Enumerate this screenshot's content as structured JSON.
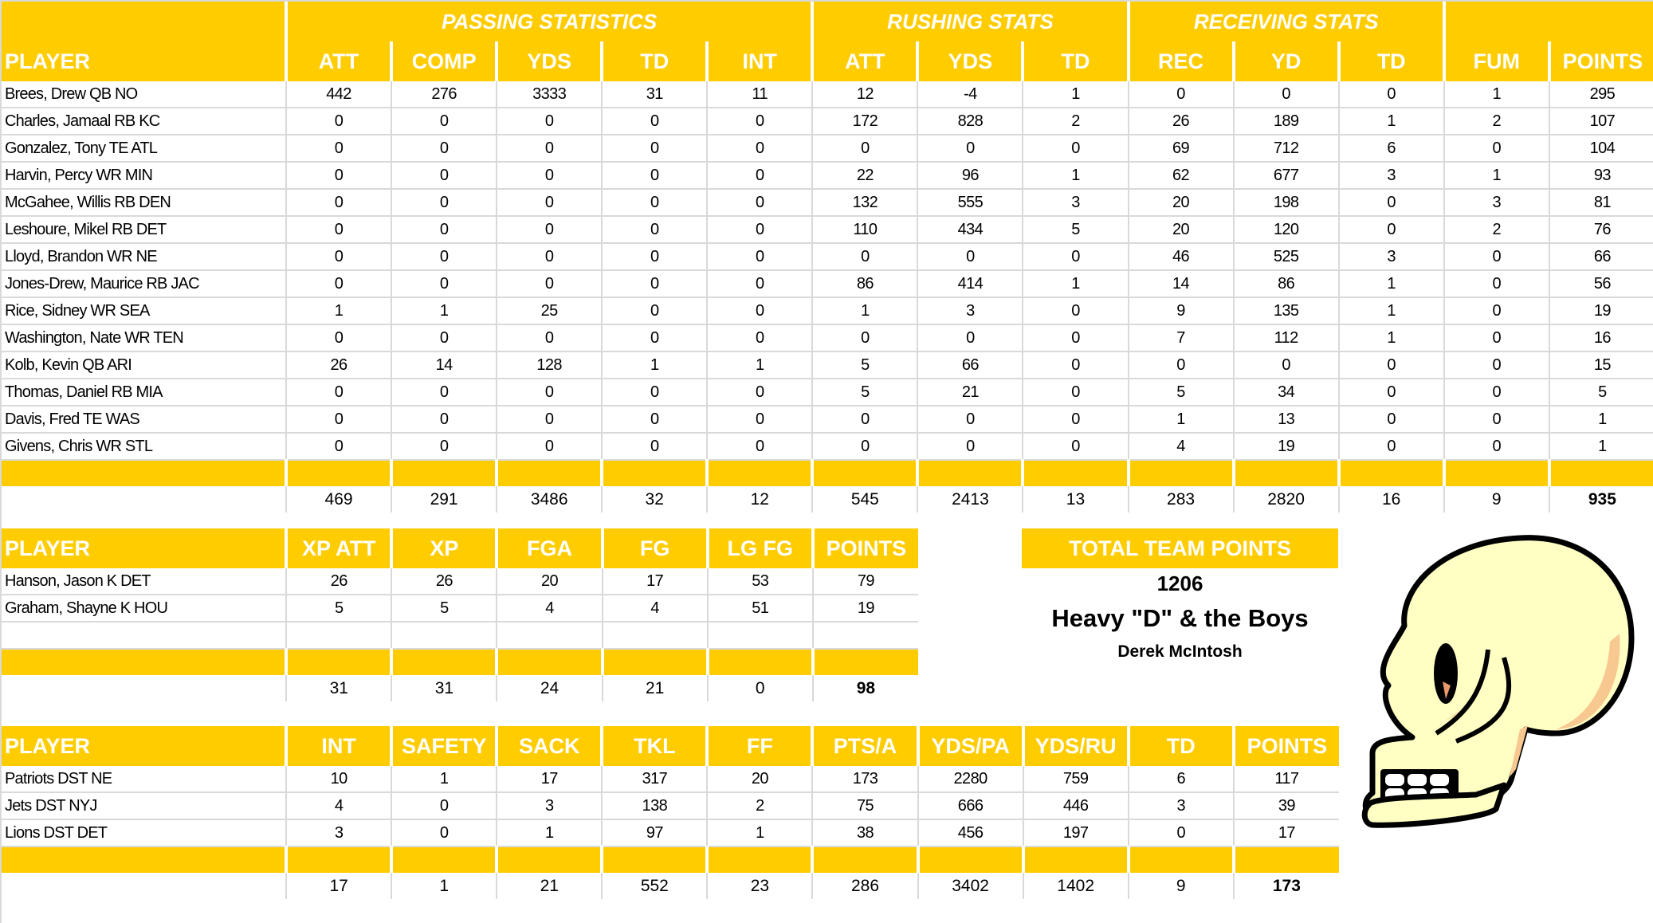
{
  "colors": {
    "header_bg": "#ffcc00",
    "header_text": "#ffffff",
    "grid": "#d9d9d9"
  },
  "offense": {
    "groups": [
      {
        "label": ""
      },
      {
        "label": "PASSING STATISTICS"
      },
      {
        "label": "RUSHING STATS"
      },
      {
        "label": "RECEIVING STATS"
      },
      {
        "label": ""
      }
    ],
    "headers": [
      "PLAYER",
      "ATT",
      "COMP",
      "YDS",
      "TD",
      "INT",
      "ATT",
      "YDS",
      "TD",
      "REC",
      "YD",
      "TD",
      "FUM",
      "POINTS"
    ],
    "rows": [
      [
        "Brees, Drew QB NO",
        "442",
        "276",
        "3333",
        "31",
        "11",
        "12",
        "-4",
        "1",
        "0",
        "0",
        "0",
        "1",
        "295"
      ],
      [
        "Charles, Jamaal RB KC",
        "0",
        "0",
        "0",
        "0",
        "0",
        "172",
        "828",
        "2",
        "26",
        "189",
        "1",
        "2",
        "107"
      ],
      [
        "Gonzalez, Tony TE ATL",
        "0",
        "0",
        "0",
        "0",
        "0",
        "0",
        "0",
        "0",
        "69",
        "712",
        "6",
        "0",
        "104"
      ],
      [
        "Harvin, Percy WR MIN",
        "0",
        "0",
        "0",
        "0",
        "0",
        "22",
        "96",
        "1",
        "62",
        "677",
        "3",
        "1",
        "93"
      ],
      [
        "McGahee, Willis RB DEN",
        "0",
        "0",
        "0",
        "0",
        "0",
        "132",
        "555",
        "3",
        "20",
        "198",
        "0",
        "3",
        "81"
      ],
      [
        "Leshoure, Mikel RB DET",
        "0",
        "0",
        "0",
        "0",
        "0",
        "110",
        "434",
        "5",
        "20",
        "120",
        "0",
        "2",
        "76"
      ],
      [
        "Lloyd, Brandon WR NE",
        "0",
        "0",
        "0",
        "0",
        "0",
        "0",
        "0",
        "0",
        "46",
        "525",
        "3",
        "0",
        "66"
      ],
      [
        "Jones-Drew, Maurice RB JAC",
        "0",
        "0",
        "0",
        "0",
        "0",
        "86",
        "414",
        "1",
        "14",
        "86",
        "1",
        "0",
        "56"
      ],
      [
        "Rice, Sidney WR SEA",
        "1",
        "1",
        "25",
        "0",
        "0",
        "1",
        "3",
        "0",
        "9",
        "135",
        "1",
        "0",
        "19"
      ],
      [
        "Washington, Nate WR TEN",
        "0",
        "0",
        "0",
        "0",
        "0",
        "0",
        "0",
        "0",
        "7",
        "112",
        "1",
        "0",
        "16"
      ],
      [
        "Kolb, Kevin QB ARI",
        "26",
        "14",
        "128",
        "1",
        "1",
        "5",
        "66",
        "0",
        "0",
        "0",
        "0",
        "0",
        "15"
      ],
      [
        "Thomas, Daniel RB MIA",
        "0",
        "0",
        "0",
        "0",
        "0",
        "5",
        "21",
        "0",
        "5",
        "34",
        "0",
        "0",
        "5"
      ],
      [
        "Davis, Fred TE WAS",
        "0",
        "0",
        "0",
        "0",
        "0",
        "0",
        "0",
        "0",
        "1",
        "13",
        "0",
        "0",
        "1"
      ],
      [
        "Givens, Chris WR STL",
        "0",
        "0",
        "0",
        "0",
        "0",
        "0",
        "0",
        "0",
        "4",
        "19",
        "0",
        "0",
        "1"
      ]
    ],
    "totals": [
      "",
      "469",
      "291",
      "3486",
      "32",
      "12",
      "545",
      "2413",
      "13",
      "283",
      "2820",
      "16",
      "9",
      "935"
    ]
  },
  "kickers": {
    "headers": [
      "PLAYER",
      "XP ATT",
      "XP",
      "FGA",
      "FG",
      "LG FG",
      "POINTS"
    ],
    "rows": [
      [
        "Hanson, Jason K DET",
        "26",
        "26",
        "20",
        "17",
        "53",
        "79"
      ],
      [
        "Graham, Shayne K HOU",
        "5",
        "5",
        "4",
        "4",
        "51",
        "19"
      ],
      [
        "",
        "",
        "",
        "",
        "",
        "",
        ""
      ]
    ],
    "totals": [
      "",
      "31",
      "31",
      "24",
      "21",
      "0",
      "98"
    ]
  },
  "defense": {
    "headers": [
      "PLAYER",
      "INT",
      "SAFETY",
      "SACK",
      "TKL",
      "FF",
      "PTS/A",
      "YDS/PA",
      "YDS/RU",
      "TD",
      "POINTS"
    ],
    "rows": [
      [
        "Patriots DST NE",
        "10",
        "1",
        "17",
        "317",
        "20",
        "173",
        "2280",
        "759",
        "6",
        "117"
      ],
      [
        "Jets DST NYJ",
        "4",
        "0",
        "3",
        "138",
        "2",
        "75",
        "666",
        "446",
        "3",
        "39"
      ],
      [
        "Lions DST DET",
        "3",
        "0",
        "1",
        "97",
        "1",
        "38",
        "456",
        "197",
        "0",
        "17"
      ]
    ],
    "totals": [
      "",
      "17",
      "1",
      "21",
      "552",
      "23",
      "286",
      "3402",
      "1402",
      "9",
      "173"
    ]
  },
  "team": {
    "title": "TOTAL TEAM POINTS",
    "points": "1206",
    "name": "Heavy \"D\" & the Boys",
    "owner": "Derek McIntosh",
    "logo_icon": "skull-icon"
  }
}
